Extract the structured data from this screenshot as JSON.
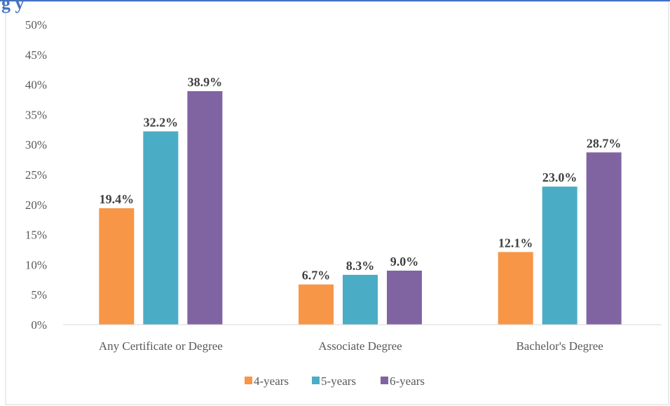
{
  "chart_data": {
    "type": "bar",
    "title": "g                                                                                                   y",
    "categories": [
      "Any Certificate or Degree",
      "Associate Degree",
      "Bachelor's Degree"
    ],
    "series": [
      {
        "name": "4-years",
        "values": [
          19.4,
          6.7,
          12.1
        ],
        "labels": [
          "19.4%",
          "6.7%",
          "12.1%"
        ],
        "color": "#f79646"
      },
      {
        "name": "5-years",
        "values": [
          32.2,
          8.3,
          23.0
        ],
        "labels": [
          "32.2%",
          "8.3%",
          "23.0%"
        ],
        "color": "#4bacc6"
      },
      {
        "name": "6-years",
        "values": [
          38.9,
          9.0,
          28.7
        ],
        "labels": [
          "38.9%",
          "9.0%",
          "28.7%"
        ],
        "color": "#8064a2"
      }
    ],
    "ylim": [
      0,
      50
    ],
    "yticks": [
      "0%",
      "5%",
      "10%",
      "15%",
      "20%",
      "25%",
      "30%",
      "35%",
      "40%",
      "45%",
      "50%"
    ],
    "grid": false,
    "legend_position": "bottom",
    "xlabel": "",
    "ylabel": ""
  }
}
